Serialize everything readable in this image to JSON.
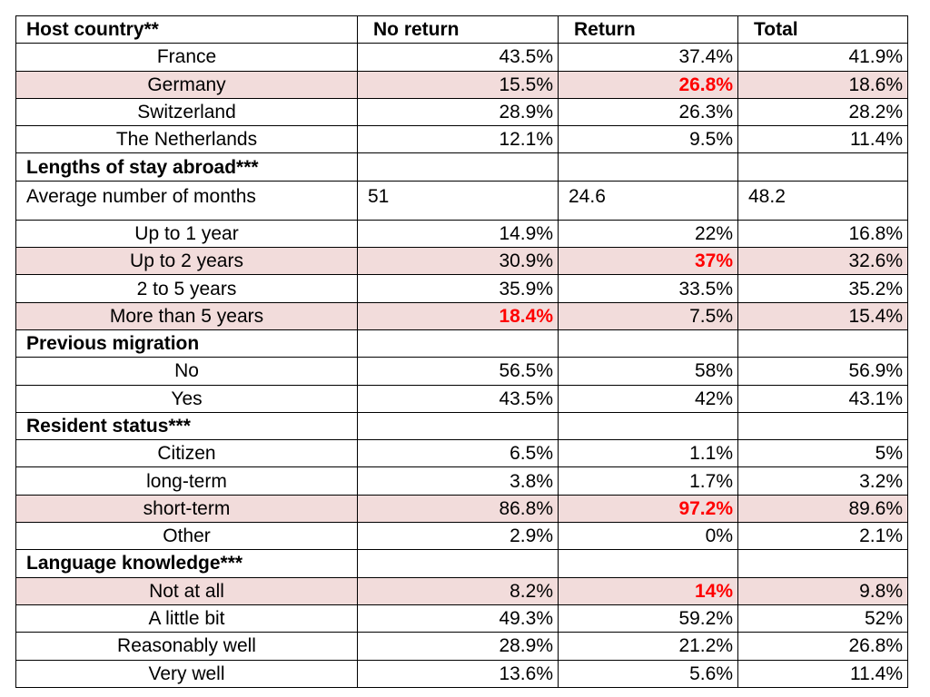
{
  "header": [
    "Host country**",
    "No return",
    "Return",
    "Total"
  ],
  "rows": [
    {
      "kind": "data",
      "label": "France",
      "values": [
        "43.5%",
        "37.4%",
        "41.9%"
      ],
      "highlight": false,
      "red": [
        false,
        false,
        false
      ]
    },
    {
      "kind": "data",
      "label": "Germany",
      "values": [
        "15.5%",
        "26.8%",
        "18.6%"
      ],
      "highlight": true,
      "red": [
        false,
        true,
        false
      ]
    },
    {
      "kind": "data",
      "label": "Switzerland",
      "values": [
        "28.9%",
        "26.3%",
        "28.2%"
      ],
      "highlight": false,
      "red": [
        false,
        false,
        false
      ]
    },
    {
      "kind": "data",
      "label": "The Netherlands",
      "values": [
        "12.1%",
        "9.5%",
        "11.4%"
      ],
      "highlight": false,
      "red": [
        false,
        false,
        false
      ]
    },
    {
      "kind": "section",
      "label": "Lengths of stay abroad***"
    },
    {
      "kind": "plain",
      "label": "Average number of months",
      "values": [
        "51",
        "24.6",
        "48.2"
      ]
    },
    {
      "kind": "data",
      "label": "Up to 1 year",
      "values": [
        "14.9%",
        "22%",
        "16.8%"
      ],
      "highlight": false,
      "red": [
        false,
        false,
        false
      ]
    },
    {
      "kind": "data",
      "label": "Up to 2 years",
      "values": [
        "30.9%",
        "37%",
        "32.6%"
      ],
      "highlight": true,
      "red": [
        false,
        true,
        false
      ]
    },
    {
      "kind": "data",
      "label": "2 to 5 years",
      "values": [
        "35.9%",
        "33.5%",
        "35.2%"
      ],
      "highlight": false,
      "red": [
        false,
        false,
        false
      ]
    },
    {
      "kind": "data",
      "label": "More than 5 years",
      "values": [
        "18.4%",
        "7.5%",
        "15.4%"
      ],
      "highlight": true,
      "red": [
        true,
        false,
        false
      ]
    },
    {
      "kind": "section",
      "label": "Previous migration"
    },
    {
      "kind": "data",
      "label": "No",
      "values": [
        "56.5%",
        "58%",
        "56.9%"
      ],
      "highlight": false,
      "red": [
        false,
        false,
        false
      ]
    },
    {
      "kind": "data",
      "label": "Yes",
      "values": [
        "43.5%",
        "42%",
        "43.1%"
      ],
      "highlight": false,
      "red": [
        false,
        false,
        false
      ]
    },
    {
      "kind": "section",
      "label": "Resident status***"
    },
    {
      "kind": "data",
      "label": "Citizen",
      "values": [
        "6.5%",
        "1.1%",
        "5%"
      ],
      "highlight": false,
      "red": [
        false,
        false,
        false
      ]
    },
    {
      "kind": "data",
      "label": "long-term",
      "values": [
        "3.8%",
        "1.7%",
        "3.2%"
      ],
      "highlight": false,
      "red": [
        false,
        false,
        false
      ]
    },
    {
      "kind": "data",
      "label": "short-term",
      "values": [
        "86.8%",
        "97.2%",
        "89.6%"
      ],
      "highlight": true,
      "red": [
        false,
        true,
        false
      ]
    },
    {
      "kind": "data",
      "label": "Other",
      "values": [
        "2.9%",
        "0%",
        "2.1%"
      ],
      "highlight": false,
      "red": [
        false,
        false,
        false
      ]
    },
    {
      "kind": "section",
      "label": "Language knowledge***"
    },
    {
      "kind": "data",
      "label": "Not at all",
      "values": [
        "8.2%",
        "14%",
        "9.8%"
      ],
      "highlight": true,
      "red": [
        false,
        true,
        false
      ]
    },
    {
      "kind": "data",
      "label": "A little bit",
      "values": [
        "49.3%",
        "59.2%",
        "52%"
      ],
      "highlight": false,
      "red": [
        false,
        false,
        false
      ]
    },
    {
      "kind": "data",
      "label": "Reasonably well",
      "values": [
        "28.9%",
        "21.2%",
        "26.8%"
      ],
      "highlight": false,
      "red": [
        false,
        false,
        false
      ]
    },
    {
      "kind": "data",
      "label": "Very well",
      "values": [
        "13.6%",
        "5.6%",
        "11.4%"
      ],
      "highlight": false,
      "red": [
        false,
        false,
        false
      ]
    }
  ]
}
